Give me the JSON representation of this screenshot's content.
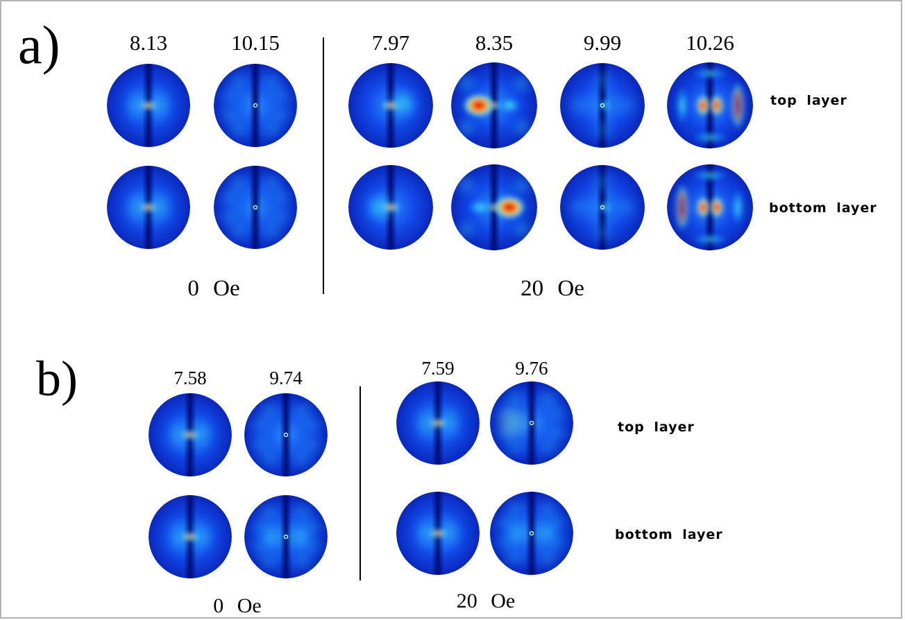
{
  "panel_a": {
    "label": "a)",
    "row_labels": [
      "top  layer",
      "bottom  layer"
    ],
    "zero_field": {
      "field": "0  Oe",
      "frequencies": [
        "8.13",
        "10.15"
      ]
    },
    "applied_field": {
      "field": "20  Oe",
      "frequencies": [
        "7.97",
        "8.35",
        "9.99",
        "10.26"
      ]
    }
  },
  "panel_b": {
    "label": "b)",
    "row_labels": [
      "top  layer",
      "bottom  layer"
    ],
    "zero_field": {
      "field": "0  Oe",
      "frequencies": [
        "7.58",
        "9.74"
      ]
    },
    "applied_field": {
      "field": "20  Oe",
      "frequencies": [
        "7.59",
        "9.76"
      ]
    }
  },
  "colormap": {
    "low": "#0a28bc",
    "mid": "#22d0ff",
    "high": "#ffe000",
    "peak": "#ff2000"
  }
}
